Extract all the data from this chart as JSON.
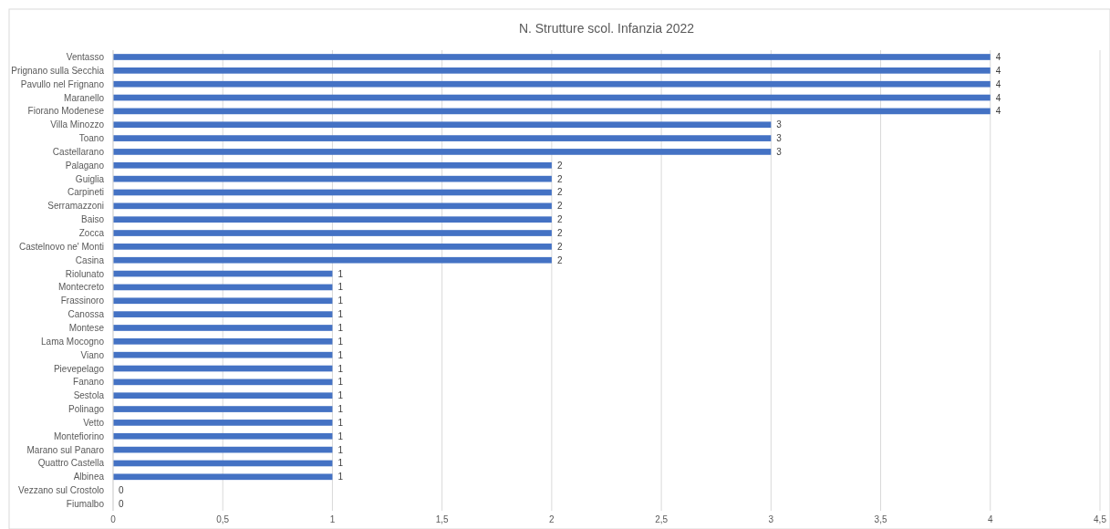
{
  "chart_data": {
    "type": "bar",
    "orientation": "horizontal",
    "title": "N. Strutture scol. Infanzia 2022",
    "categories": [
      "Ventasso",
      "Prignano sulla Secchia",
      "Pavullo nel Frignano",
      "Maranello",
      "Fiorano Modenese",
      "Villa Minozzo",
      "Toano",
      "Castellarano",
      "Palagano",
      "Guiglia",
      "Carpineti",
      "Serramazzoni",
      "Baiso",
      "Zocca",
      "Castelnovo ne' Monti",
      "Casina",
      "Riolunato",
      "Montecreto",
      "Frassinoro",
      "Canossa",
      "Montese",
      "Lama Mocogno",
      "Viano",
      "Pievepelago",
      "Fanano",
      "Sestola",
      "Polinago",
      "Vetto",
      "Montefiorino",
      "Marano sul Panaro",
      "Quattro Castella",
      "Albinea",
      "Vezzano sul Crostolo",
      "Fiumalbo"
    ],
    "values": [
      4,
      4,
      4,
      4,
      4,
      3,
      3,
      3,
      2,
      2,
      2,
      2,
      2,
      2,
      2,
      2,
      1,
      1,
      1,
      1,
      1,
      1,
      1,
      1,
      1,
      1,
      1,
      1,
      1,
      1,
      1,
      1,
      0,
      0
    ],
    "color": "#4472c4",
    "xlim": [
      0,
      4.5
    ],
    "xticks": [
      0,
      {
        "value": 0.5,
        "label": "0,5"
      },
      1,
      {
        "value": 1.5,
        "label": "1,5"
      },
      2,
      {
        "value": 2.5,
        "label": "2,5"
      },
      3,
      {
        "value": 3.5,
        "label": "3,5"
      },
      4,
      {
        "value": 4.5,
        "label": "4,5"
      }
    ],
    "grid": "x",
    "data_labels": true
  }
}
